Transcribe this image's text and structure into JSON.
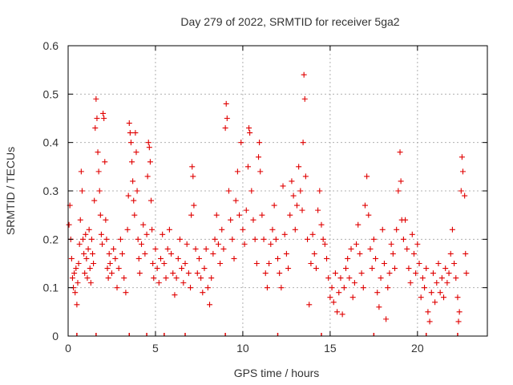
{
  "chart_data": {
    "type": "scatter",
    "title": "Day 279 of 2022, SRMTID for receiver 5ga2",
    "xlabel": "GPS time / hours",
    "ylabel": "SRMTID / TECUs",
    "xlim": [
      0,
      24
    ],
    "ylim": [
      0,
      0.6
    ],
    "xticks": [
      0,
      5,
      10,
      15,
      20
    ],
    "yticks": [
      0,
      0.1,
      0.2,
      0.3,
      0.4,
      0.5,
      0.6
    ],
    "xtick_labels": [
      "0",
      "5",
      "10",
      "15",
      "20"
    ],
    "ytick_labels": [
      "0",
      "0.1",
      "0.2",
      "0.3",
      "0.4",
      "0.5",
      "0.6"
    ],
    "grid": true,
    "legend": "none",
    "marker": "+",
    "series": [
      {
        "name": "SRMTID",
        "color": "#e00000",
        "points": [
          [
            0.05,
            0.23
          ],
          [
            0.1,
            0.27
          ],
          [
            0.15,
            0.2
          ],
          [
            0.2,
            0.16
          ],
          [
            0.25,
            0.12
          ],
          [
            0.3,
            0.1
          ],
          [
            0.35,
            0.13
          ],
          [
            0.4,
            0.09
          ],
          [
            0.45,
            0.14
          ],
          [
            0.5,
            0.065
          ],
          [
            0.55,
            0.11
          ],
          [
            0.6,
            0.15
          ],
          [
            0.65,
            0.19
          ],
          [
            0.7,
            0.24
          ],
          [
            0.75,
            0.34
          ],
          [
            0.8,
            0.3
          ],
          [
            0.85,
            0.2
          ],
          [
            0.9,
            0.17
          ],
          [
            0.95,
            0.13
          ],
          [
            1.0,
            0.21
          ],
          [
            1.05,
            0.16
          ],
          [
            1.1,
            0.12
          ],
          [
            1.15,
            0.18
          ],
          [
            1.2,
            0.22
          ],
          [
            1.25,
            0.14
          ],
          [
            1.3,
            0.11
          ],
          [
            1.35,
            0.2
          ],
          [
            1.4,
            0.17
          ],
          [
            1.45,
            0.15
          ],
          [
            1.5,
            0.28
          ],
          [
            1.55,
            0.43
          ],
          [
            1.6,
            0.49
          ],
          [
            1.65,
            0.45
          ],
          [
            1.7,
            0.38
          ],
          [
            1.75,
            0.34
          ],
          [
            1.8,
            0.3
          ],
          [
            1.85,
            0.25
          ],
          [
            1.9,
            0.21
          ],
          [
            1.95,
            0.19
          ],
          [
            2.0,
            0.46
          ],
          [
            2.05,
            0.45
          ],
          [
            2.1,
            0.36
          ],
          [
            2.15,
            0.24
          ],
          [
            2.2,
            0.2
          ],
          [
            2.25,
            0.14
          ],
          [
            2.3,
            0.12
          ],
          [
            2.35,
            0.17
          ],
          [
            2.4,
            0.15
          ],
          [
            2.5,
            0.13
          ],
          [
            2.6,
            0.18
          ],
          [
            2.7,
            0.16
          ],
          [
            2.8,
            0.1
          ],
          [
            2.9,
            0.14
          ],
          [
            3.0,
            0.2
          ],
          [
            3.1,
            0.17
          ],
          [
            3.2,
            0.12
          ],
          [
            3.3,
            0.09
          ],
          [
            3.4,
            0.22
          ],
          [
            3.45,
            0.29
          ],
          [
            3.5,
            0.44
          ],
          [
            3.55,
            0.42
          ],
          [
            3.6,
            0.4
          ],
          [
            3.65,
            0.36
          ],
          [
            3.7,
            0.32
          ],
          [
            3.75,
            0.28
          ],
          [
            3.8,
            0.25
          ],
          [
            3.85,
            0.42
          ],
          [
            3.9,
            0.38
          ],
          [
            3.95,
            0.3
          ],
          [
            4.0,
            0.2
          ],
          [
            4.05,
            0.16
          ],
          [
            4.1,
            0.13
          ],
          [
            4.2,
            0.19
          ],
          [
            4.3,
            0.23
          ],
          [
            4.4,
            0.17
          ],
          [
            4.5,
            0.21
          ],
          [
            4.55,
            0.33
          ],
          [
            4.6,
            0.4
          ],
          [
            4.65,
            0.39
          ],
          [
            4.7,
            0.36
          ],
          [
            4.75,
            0.28
          ],
          [
            4.8,
            0.22
          ],
          [
            4.85,
            0.15
          ],
          [
            4.9,
            0.12
          ],
          [
            5.0,
            0.18
          ],
          [
            5.1,
            0.14
          ],
          [
            5.2,
            0.11
          ],
          [
            5.3,
            0.16
          ],
          [
            5.4,
            0.21
          ],
          [
            5.5,
            0.15
          ],
          [
            5.6,
            0.12
          ],
          [
            5.7,
            0.18
          ],
          [
            5.8,
            0.22
          ],
          [
            5.9,
            0.17
          ],
          [
            6.0,
            0.13
          ],
          [
            6.1,
            0.085
          ],
          [
            6.2,
            0.12
          ],
          [
            6.3,
            0.16
          ],
          [
            6.4,
            0.2
          ],
          [
            6.5,
            0.14
          ],
          [
            6.6,
            0.11
          ],
          [
            6.7,
            0.15
          ],
          [
            6.8,
            0.19
          ],
          [
            6.9,
            0.13
          ],
          [
            7.0,
            0.1
          ],
          [
            7.05,
            0.25
          ],
          [
            7.1,
            0.35
          ],
          [
            7.15,
            0.33
          ],
          [
            7.2,
            0.27
          ],
          [
            7.3,
            0.18
          ],
          [
            7.4,
            0.13
          ],
          [
            7.5,
            0.16
          ],
          [
            7.6,
            0.12
          ],
          [
            7.7,
            0.09
          ],
          [
            7.8,
            0.14
          ],
          [
            7.9,
            0.18
          ],
          [
            8.0,
            0.1
          ],
          [
            8.1,
            0.065
          ],
          [
            8.2,
            0.12
          ],
          [
            8.3,
            0.17
          ],
          [
            8.4,
            0.2
          ],
          [
            8.5,
            0.25
          ],
          [
            8.6,
            0.19
          ],
          [
            8.7,
            0.15
          ],
          [
            8.8,
            0.22
          ],
          [
            8.9,
            0.18
          ],
          [
            9.0,
            0.43
          ],
          [
            9.05,
            0.48
          ],
          [
            9.1,
            0.45
          ],
          [
            9.2,
            0.3
          ],
          [
            9.3,
            0.24
          ],
          [
            9.4,
            0.2
          ],
          [
            9.5,
            0.16
          ],
          [
            9.6,
            0.28
          ],
          [
            9.7,
            0.34
          ],
          [
            9.8,
            0.25
          ],
          [
            9.9,
            0.4
          ],
          [
            10.0,
            0.22
          ],
          [
            10.1,
            0.19
          ],
          [
            10.2,
            0.26
          ],
          [
            10.3,
            0.35
          ],
          [
            10.35,
            0.43
          ],
          [
            10.4,
            0.42
          ],
          [
            10.5,
            0.3
          ],
          [
            10.6,
            0.24
          ],
          [
            10.7,
            0.2
          ],
          [
            10.8,
            0.15
          ],
          [
            10.9,
            0.37
          ],
          [
            10.95,
            0.4
          ],
          [
            11.0,
            0.34
          ],
          [
            11.1,
            0.25
          ],
          [
            11.2,
            0.2
          ],
          [
            11.3,
            0.13
          ],
          [
            11.4,
            0.1
          ],
          [
            11.5,
            0.15
          ],
          [
            11.6,
            0.19
          ],
          [
            11.7,
            0.22
          ],
          [
            11.8,
            0.27
          ],
          [
            11.9,
            0.2
          ],
          [
            12.0,
            0.16
          ],
          [
            12.1,
            0.13
          ],
          [
            12.2,
            0.1
          ],
          [
            12.3,
            0.31
          ],
          [
            12.4,
            0.21
          ],
          [
            12.5,
            0.17
          ],
          [
            12.6,
            0.14
          ],
          [
            12.7,
            0.25
          ],
          [
            12.8,
            0.32
          ],
          [
            12.9,
            0.29
          ],
          [
            13.0,
            0.22
          ],
          [
            13.1,
            0.27
          ],
          [
            13.2,
            0.35
          ],
          [
            13.3,
            0.3
          ],
          [
            13.4,
            0.26
          ],
          [
            13.45,
            0.4
          ],
          [
            13.5,
            0.54
          ],
          [
            13.55,
            0.49
          ],
          [
            13.6,
            0.33
          ],
          [
            13.7,
            0.2
          ],
          [
            13.8,
            0.065
          ],
          [
            13.9,
            0.15
          ],
          [
            14.0,
            0.21
          ],
          [
            14.1,
            0.17
          ],
          [
            14.2,
            0.14
          ],
          [
            14.3,
            0.26
          ],
          [
            14.4,
            0.3
          ],
          [
            14.5,
            0.23
          ],
          [
            14.6,
            0.2
          ],
          [
            14.7,
            0.19
          ],
          [
            14.8,
            0.16
          ],
          [
            14.9,
            0.12
          ],
          [
            15.0,
            0.08
          ],
          [
            15.1,
            0.1
          ],
          [
            15.2,
            0.07
          ],
          [
            15.3,
            0.13
          ],
          [
            15.4,
            0.05
          ],
          [
            15.5,
            0.09
          ],
          [
            15.6,
            0.12
          ],
          [
            15.7,
            0.045
          ],
          [
            15.8,
            0.1
          ],
          [
            15.9,
            0.14
          ],
          [
            16.0,
            0.16
          ],
          [
            16.1,
            0.12
          ],
          [
            16.2,
            0.18
          ],
          [
            16.3,
            0.08
          ],
          [
            16.4,
            0.11
          ],
          [
            16.5,
            0.19
          ],
          [
            16.6,
            0.23
          ],
          [
            16.7,
            0.17
          ],
          [
            16.8,
            0.13
          ],
          [
            16.9,
            0.1
          ],
          [
            17.0,
            0.27
          ],
          [
            17.1,
            0.33
          ],
          [
            17.2,
            0.25
          ],
          [
            17.3,
            0.18
          ],
          [
            17.4,
            0.14
          ],
          [
            17.5,
            0.2
          ],
          [
            17.6,
            0.16
          ],
          [
            17.7,
            0.09
          ],
          [
            17.8,
            0.06
          ],
          [
            17.9,
            0.12
          ],
          [
            18.0,
            0.22
          ],
          [
            18.1,
            0.15
          ],
          [
            18.2,
            0.035
          ],
          [
            18.3,
            0.1
          ],
          [
            18.4,
            0.13
          ],
          [
            18.5,
            0.19
          ],
          [
            18.6,
            0.17
          ],
          [
            18.7,
            0.14
          ],
          [
            18.8,
            0.22
          ],
          [
            18.9,
            0.3
          ],
          [
            19.0,
            0.38
          ],
          [
            19.05,
            0.32
          ],
          [
            19.1,
            0.24
          ],
          [
            19.2,
            0.2
          ],
          [
            19.3,
            0.24
          ],
          [
            19.4,
            0.18
          ],
          [
            19.5,
            0.14
          ],
          [
            19.6,
            0.11
          ],
          [
            19.7,
            0.21
          ],
          [
            19.8,
            0.17
          ],
          [
            19.9,
            0.13
          ],
          [
            20.0,
            0.19
          ],
          [
            20.1,
            0.15
          ],
          [
            20.2,
            0.08
          ],
          [
            20.3,
            0.12
          ],
          [
            20.4,
            0.1
          ],
          [
            20.5,
            0.14
          ],
          [
            20.6,
            0.05
          ],
          [
            20.7,
            0.03
          ],
          [
            20.8,
            0.09
          ],
          [
            20.9,
            0.13
          ],
          [
            21.0,
            0.07
          ],
          [
            21.1,
            0.11
          ],
          [
            21.2,
            0.15
          ],
          [
            21.3,
            0.09
          ],
          [
            21.4,
            0.12
          ],
          [
            21.5,
            0.08
          ],
          [
            21.6,
            0.14
          ],
          [
            21.7,
            0.11
          ],
          [
            21.8,
            0.13
          ],
          [
            21.9,
            0.17
          ],
          [
            22.0,
            0.22
          ],
          [
            22.1,
            0.15
          ],
          [
            22.2,
            0.12
          ],
          [
            22.3,
            0.08
          ],
          [
            22.35,
            0.03
          ],
          [
            22.4,
            0.05
          ],
          [
            22.5,
            0.3
          ],
          [
            22.55,
            0.37
          ],
          [
            22.6,
            0.34
          ],
          [
            22.7,
            0.29
          ],
          [
            22.75,
            0.17
          ],
          [
            22.8,
            0.13
          ]
        ]
      }
    ],
    "rug_x": [
      0.5,
      1.6,
      3.5,
      4.5,
      5.5,
      6.7,
      9.0,
      12.0,
      14.5,
      17.5,
      20.5,
      22.3
    ]
  }
}
